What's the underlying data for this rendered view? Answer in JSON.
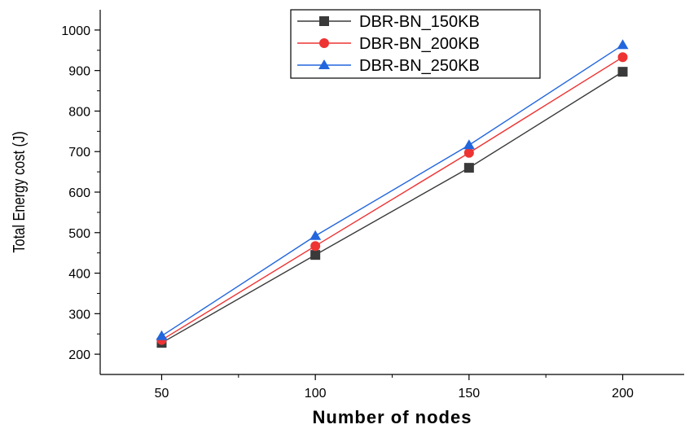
{
  "chart_data": {
    "type": "line",
    "title": "",
    "xlabel": "Number of nodes",
    "ylabel": "Total Energy cost  (J)",
    "x": [
      50,
      100,
      150,
      200
    ],
    "xlim": [
      30,
      220
    ],
    "ylim": [
      150,
      1050
    ],
    "xticks": [
      50,
      100,
      150,
      200
    ],
    "yticks": [
      200,
      300,
      400,
      500,
      600,
      700,
      800,
      900,
      1000
    ],
    "grid": false,
    "legend_position": "top-center",
    "series": [
      {
        "name": "DBR-BN_150KB",
        "values": [
          228,
          445,
          660,
          897
        ],
        "color": "#3a3a3a",
        "marker": "square"
      },
      {
        "name": "DBR-BN_200KB",
        "values": [
          235,
          467,
          697,
          933
        ],
        "color": "#ee3333",
        "marker": "circle"
      },
      {
        "name": "DBR-BN_250KB",
        "values": [
          245,
          492,
          716,
          963
        ],
        "color": "#2266dd",
        "marker": "triangle"
      }
    ]
  }
}
